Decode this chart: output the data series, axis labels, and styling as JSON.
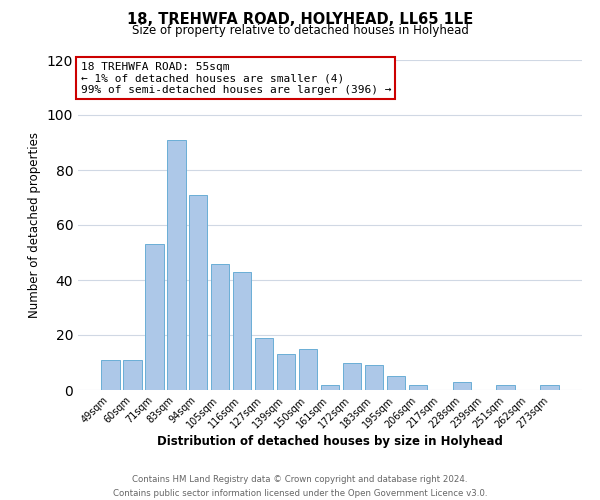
{
  "title": "18, TREHWFA ROAD, HOLYHEAD, LL65 1LE",
  "subtitle": "Size of property relative to detached houses in Holyhead",
  "xlabel": "Distribution of detached houses by size in Holyhead",
  "ylabel": "Number of detached properties",
  "bar_color": "#adc8e8",
  "bar_edge_color": "#6aaed6",
  "categories": [
    "49sqm",
    "60sqm",
    "71sqm",
    "83sqm",
    "94sqm",
    "105sqm",
    "116sqm",
    "127sqm",
    "139sqm",
    "150sqm",
    "161sqm",
    "172sqm",
    "183sqm",
    "195sqm",
    "206sqm",
    "217sqm",
    "228sqm",
    "239sqm",
    "251sqm",
    "262sqm",
    "273sqm"
  ],
  "values": [
    11,
    11,
    53,
    91,
    71,
    46,
    43,
    19,
    13,
    15,
    2,
    10,
    9,
    5,
    2,
    0,
    3,
    0,
    2,
    0,
    2
  ],
  "ylim": [
    0,
    120
  ],
  "yticks": [
    0,
    20,
    40,
    60,
    80,
    100,
    120
  ],
  "annotation_title": "18 TREHWFA ROAD: 55sqm",
  "annotation_line1": "← 1% of detached houses are smaller (4)",
  "annotation_line2": "99% of semi-detached houses are larger (396) →",
  "annotation_box_color": "#ffffff",
  "annotation_box_edge": "#cc0000",
  "footer_line1": "Contains HM Land Registry data © Crown copyright and database right 2024.",
  "footer_line2": "Contains public sector information licensed under the Open Government Licence v3.0.",
  "background_color": "#ffffff",
  "grid_color": "#d0d8e4"
}
